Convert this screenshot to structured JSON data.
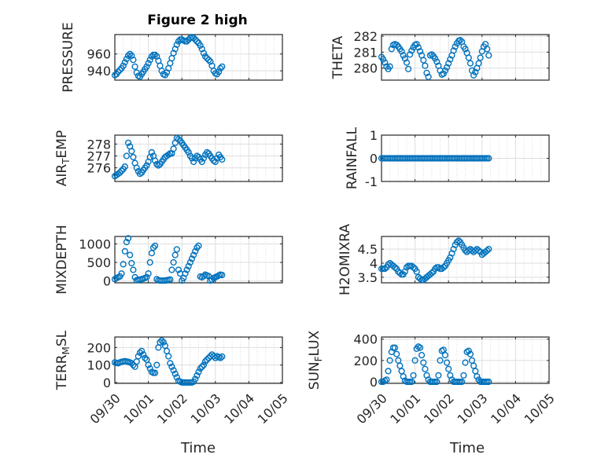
{
  "figure": {
    "title": "Figure 2 high",
    "xlabel": "Time",
    "date_ticks": [
      "09/30",
      "10/01",
      "10/02",
      "10/03",
      "10/04",
      "10/05"
    ],
    "marker_color": "#0072BD"
  },
  "chart_data": [
    {
      "type": "scatter",
      "name": "pressure",
      "ylabel": "PRESSURE",
      "ylabel_sub": "",
      "ylabel_after": "",
      "xlim": [
        0,
        5
      ],
      "ylim": [
        929,
        983
      ],
      "yticks": [
        940,
        960
      ],
      "x": [
        0.0,
        0.05,
        0.1,
        0.15,
        0.2,
        0.25,
        0.3,
        0.35,
        0.4,
        0.45,
        0.5,
        0.55,
        0.6,
        0.65,
        0.7,
        0.75,
        0.8,
        0.85,
        0.9,
        0.95,
        1.0,
        1.05,
        1.1,
        1.15,
        1.2,
        1.25,
        1.3,
        1.35,
        1.4,
        1.45,
        1.5,
        1.55,
        1.6,
        1.65,
        1.7,
        1.75,
        1.8,
        1.85,
        1.9,
        1.95,
        2.0,
        2.05,
        2.1,
        2.15,
        2.2,
        2.25,
        2.3,
        2.35,
        2.4,
        2.45,
        2.5,
        2.55,
        2.6,
        2.65,
        2.7,
        2.75,
        2.8,
        2.85,
        2.9,
        2.95,
        3.0,
        3.05,
        3.1,
        3.15,
        3.2
      ],
      "y": [
        935,
        936,
        939,
        941,
        943,
        946,
        950,
        954,
        958,
        960,
        958,
        953,
        945,
        938,
        934,
        933,
        936,
        939,
        942,
        945,
        949,
        953,
        957,
        959,
        959,
        957,
        952,
        946,
        940,
        936,
        935,
        938,
        943,
        949,
        955,
        961,
        966,
        971,
        975,
        977,
        977,
        976,
        975,
        975,
        977,
        979,
        980,
        979,
        977,
        975,
        973,
        970,
        966,
        961,
        957,
        955,
        953,
        951,
        946,
        940,
        937,
        936,
        939,
        943,
        945
      ]
    },
    {
      "type": "scatter",
      "name": "theta",
      "ylabel": "THETA",
      "ylabel_sub": "",
      "ylabel_after": "",
      "xlim": [
        0,
        5
      ],
      "ylim": [
        279.25,
        282.1
      ],
      "yticks": [
        280,
        281,
        282
      ],
      "x": [
        0.0,
        0.05,
        0.1,
        0.15,
        0.2,
        0.25,
        0.3,
        0.35,
        0.4,
        0.45,
        0.5,
        0.55,
        0.6,
        0.65,
        0.7,
        0.75,
        0.8,
        0.85,
        0.9,
        0.95,
        1.0,
        1.05,
        1.1,
        1.15,
        1.2,
        1.25,
        1.3,
        1.35,
        1.4,
        1.45,
        1.5,
        1.55,
        1.6,
        1.65,
        1.7,
        1.75,
        1.8,
        1.85,
        1.9,
        1.95,
        2.0,
        2.05,
        2.1,
        2.15,
        2.2,
        2.25,
        2.3,
        2.35,
        2.4,
        2.45,
        2.5,
        2.55,
        2.6,
        2.65,
        2.7,
        2.75,
        2.8,
        2.85,
        2.9,
        2.95,
        3.0,
        3.05,
        3.1,
        3.15,
        3.2
      ],
      "y": [
        280.7,
        280.55,
        280.35,
        280.1,
        279.95,
        280.1,
        281.2,
        281.45,
        281.5,
        281.45,
        281.35,
        281.2,
        281.05,
        280.8,
        280.6,
        280.35,
        279.95,
        280.85,
        281.1,
        281.3,
        281.45,
        281.5,
        281.3,
        281.05,
        280.8,
        280.5,
        280.15,
        279.7,
        279.45,
        280.8,
        280.85,
        280.75,
        280.6,
        280.4,
        280.15,
        279.85,
        279.6,
        279.65,
        279.85,
        280.05,
        280.3,
        280.55,
        280.8,
        281.1,
        281.35,
        281.55,
        281.7,
        281.75,
        281.65,
        281.35,
        281.2,
        280.95,
        280.65,
        280.3,
        279.85,
        279.55,
        279.75,
        280.0,
        280.3,
        280.65,
        281.05,
        281.35,
        281.5,
        281.2,
        280.8
      ]
    },
    {
      "type": "scatter",
      "name": "air-temp",
      "ylabel": "AIR",
      "ylabel_sub": "T",
      "ylabel_after": "EMP",
      "xlim": [
        0,
        5
      ],
      "ylim": [
        274.85,
        278.75
      ],
      "yticks": [
        276,
        277,
        278
      ],
      "x": [
        0.0,
        0.05,
        0.1,
        0.15,
        0.2,
        0.25,
        0.3,
        0.35,
        0.4,
        0.45,
        0.5,
        0.55,
        0.6,
        0.65,
        0.7,
        0.75,
        0.8,
        0.85,
        0.9,
        0.95,
        1.0,
        1.05,
        1.1,
        1.15,
        1.2,
        1.25,
        1.3,
        1.35,
        1.4,
        1.45,
        1.5,
        1.55,
        1.6,
        1.65,
        1.7,
        1.75,
        1.8,
        1.85,
        1.9,
        1.95,
        2.0,
        2.05,
        2.1,
        2.15,
        2.2,
        2.25,
        2.3,
        2.35,
        2.4,
        2.45,
        2.5,
        2.55,
        2.6,
        2.65,
        2.7,
        2.75,
        2.8,
        2.85,
        2.9,
        2.95,
        3.0,
        3.05,
        3.1,
        3.15,
        3.2
      ],
      "y": [
        275.3,
        275.4,
        275.5,
        275.6,
        275.75,
        275.9,
        276.1,
        277.0,
        278.1,
        277.8,
        277.4,
        276.9,
        276.4,
        276.0,
        275.7,
        275.5,
        275.6,
        275.8,
        276.0,
        276.2,
        276.5,
        276.9,
        277.3,
        277.0,
        276.6,
        276.3,
        276.2,
        276.3,
        276.5,
        276.7,
        276.9,
        277.0,
        277.1,
        277.2,
        277.2,
        277.6,
        278.1,
        278.5,
        278.4,
        278.3,
        278.1,
        277.9,
        277.7,
        277.5,
        277.3,
        277.0,
        276.8,
        276.5,
        276.8,
        277.0,
        276.9,
        276.7,
        276.5,
        276.8,
        277.1,
        277.3,
        277.2,
        277.0,
        276.8,
        276.6,
        276.5,
        276.8,
        277.1,
        276.9,
        276.7
      ]
    },
    {
      "type": "scatter",
      "name": "rainfall",
      "ylabel": "RAINFALL",
      "ylabel_sub": "",
      "ylabel_after": "",
      "xlim": [
        0,
        5
      ],
      "ylim": [
        -1,
        1
      ],
      "yticks": [
        -1,
        0,
        1
      ],
      "x": [
        0.0,
        0.05,
        0.1,
        0.15,
        0.2,
        0.25,
        0.3,
        0.35,
        0.4,
        0.45,
        0.5,
        0.55,
        0.6,
        0.65,
        0.7,
        0.75,
        0.8,
        0.85,
        0.9,
        0.95,
        1.0,
        1.05,
        1.1,
        1.15,
        1.2,
        1.25,
        1.3,
        1.35,
        1.4,
        1.45,
        1.5,
        1.55,
        1.6,
        1.65,
        1.7,
        1.75,
        1.8,
        1.85,
        1.9,
        1.95,
        2.0,
        2.05,
        2.1,
        2.15,
        2.2,
        2.25,
        2.3,
        2.35,
        2.4,
        2.45,
        2.5,
        2.55,
        2.6,
        2.65,
        2.7,
        2.75,
        2.8,
        2.85,
        2.9,
        2.95,
        3.0,
        3.05,
        3.1,
        3.15,
        3.2
      ],
      "y": [
        0,
        0,
        0,
        0,
        0,
        0,
        0,
        0,
        0,
        0,
        0,
        0,
        0,
        0,
        0,
        0,
        0,
        0,
        0,
        0,
        0,
        0,
        0,
        0,
        0,
        0,
        0,
        0,
        0,
        0,
        0,
        0,
        0,
        0,
        0,
        0,
        0,
        0,
        0,
        0,
        0,
        0,
        0,
        0,
        0,
        0,
        0,
        0,
        0,
        0,
        0,
        0,
        0,
        0,
        0,
        0,
        0,
        0,
        0,
        0,
        0,
        0,
        0,
        0,
        0
      ]
    },
    {
      "type": "scatter",
      "name": "mixdepth",
      "ylabel": "MIXDEPTH",
      "ylabel_sub": "",
      "ylabel_after": "",
      "xlim": [
        0,
        5
      ],
      "ylim": [
        -50,
        1200
      ],
      "yticks": [
        0,
        500,
        1000
      ],
      "x": [
        0.0,
        0.05,
        0.1,
        0.15,
        0.2,
        0.25,
        0.3,
        0.35,
        0.4,
        0.45,
        0.5,
        0.55,
        0.6,
        0.65,
        0.7,
        0.75,
        0.8,
        0.85,
        0.9,
        0.95,
        1.0,
        1.05,
        1.1,
        1.15,
        1.2,
        1.25,
        1.3,
        1.35,
        1.4,
        1.45,
        1.5,
        1.55,
        1.6,
        1.65,
        1.7,
        1.75,
        1.8,
        1.85,
        1.9,
        1.95,
        2.0,
        2.05,
        2.1,
        2.15,
        2.2,
        2.25,
        2.3,
        2.35,
        2.4,
        2.45,
        2.5,
        2.55,
        2.6,
        2.65,
        2.7,
        2.75,
        2.8,
        2.85,
        2.9,
        2.95,
        3.0,
        3.05,
        3.1,
        3.15,
        3.2
      ],
      "y": [
        50,
        80,
        100,
        120,
        200,
        450,
        800,
        1050,
        1150,
        700,
        480,
        300,
        100,
        20,
        30,
        40,
        50,
        60,
        80,
        100,
        200,
        500,
        750,
        900,
        950,
        50,
        20,
        10,
        10,
        10,
        10,
        20,
        30,
        40,
        300,
        500,
        700,
        850,
        300,
        200,
        10,
        80,
        200,
        300,
        400,
        500,
        600,
        700,
        800,
        900,
        950,
        120,
        100,
        130,
        170,
        150,
        130,
        10,
        40,
        80,
        100,
        120,
        150,
        170,
        160
      ]
    },
    {
      "type": "scatter",
      "name": "h2omixra",
      "ylabel": "H2OMIXRA",
      "ylabel_sub": "",
      "ylabel_after": "",
      "xlim": [
        0,
        5
      ],
      "ylim": [
        3.3,
        4.95
      ],
      "yticks": [
        3.5,
        4,
        4.5
      ],
      "x": [
        0.0,
        0.05,
        0.1,
        0.15,
        0.2,
        0.25,
        0.3,
        0.35,
        0.4,
        0.45,
        0.5,
        0.55,
        0.6,
        0.65,
        0.7,
        0.75,
        0.8,
        0.85,
        0.9,
        0.95,
        1.0,
        1.05,
        1.1,
        1.15,
        1.2,
        1.25,
        1.3,
        1.35,
        1.4,
        1.45,
        1.5,
        1.55,
        1.6,
        1.65,
        1.7,
        1.75,
        1.8,
        1.85,
        1.9,
        1.95,
        2.0,
        2.05,
        2.1,
        2.15,
        2.2,
        2.25,
        2.3,
        2.35,
        2.4,
        2.45,
        2.5,
        2.55,
        2.6,
        2.65,
        2.7,
        2.75,
        2.8,
        2.85,
        2.9,
        2.95,
        3.0,
        3.05,
        3.1,
        3.15,
        3.2
      ],
      "y": [
        3.8,
        3.8,
        3.8,
        3.85,
        3.95,
        4.0,
        3.95,
        3.9,
        3.85,
        3.8,
        3.7,
        3.65,
        3.6,
        3.6,
        3.7,
        3.85,
        3.9,
        3.9,
        3.9,
        3.85,
        3.8,
        3.7,
        3.5,
        3.45,
        3.4,
        3.4,
        3.45,
        3.5,
        3.55,
        3.6,
        3.65,
        3.7,
        3.8,
        3.85,
        3.85,
        3.8,
        3.8,
        3.85,
        3.9,
        4.0,
        4.1,
        4.2,
        4.35,
        4.5,
        4.65,
        4.75,
        4.8,
        4.75,
        4.65,
        4.55,
        4.45,
        4.4,
        4.45,
        4.5,
        4.45,
        4.4,
        4.45,
        4.5,
        4.45,
        4.4,
        4.3,
        4.35,
        4.4,
        4.45,
        4.5
      ]
    },
    {
      "type": "scatter",
      "name": "terrain-msl",
      "ylabel": "TERR",
      "ylabel_sub": "M",
      "ylabel_after": "SL",
      "xlim": [
        0,
        5
      ],
      "ylim": [
        -5,
        260
      ],
      "yticks": [
        0,
        100,
        200
      ],
      "x": [
        0.0,
        0.05,
        0.1,
        0.15,
        0.2,
        0.25,
        0.3,
        0.35,
        0.4,
        0.45,
        0.5,
        0.55,
        0.6,
        0.65,
        0.7,
        0.75,
        0.8,
        0.85,
        0.9,
        0.95,
        1.0,
        1.05,
        1.1,
        1.15,
        1.2,
        1.25,
        1.3,
        1.35,
        1.4,
        1.45,
        1.5,
        1.55,
        1.6,
        1.65,
        1.7,
        1.75,
        1.8,
        1.85,
        1.9,
        1.95,
        2.0,
        2.05,
        2.1,
        2.15,
        2.2,
        2.25,
        2.3,
        2.35,
        2.4,
        2.45,
        2.5,
        2.55,
        2.6,
        2.65,
        2.7,
        2.75,
        2.8,
        2.85,
        2.9,
        2.95,
        3.0,
        3.05,
        3.1,
        3.15,
        3.2
      ],
      "y": [
        115,
        112,
        110,
        115,
        118,
        120,
        122,
        120,
        118,
        115,
        110,
        100,
        90,
        120,
        150,
        170,
        180,
        160,
        140,
        130,
        100,
        80,
        60,
        55,
        55,
        100,
        200,
        230,
        240,
        230,
        210,
        180,
        150,
        110,
        90,
        70,
        50,
        30,
        10,
        5,
        0,
        0,
        0,
        0,
        0,
        0,
        0,
        5,
        20,
        40,
        60,
        80,
        90,
        100,
        120,
        130,
        140,
        150,
        160,
        150,
        140,
        150,
        145,
        140,
        148
      ]
    },
    {
      "type": "scatter",
      "name": "sun-flux",
      "ylabel": "SUN",
      "ylabel_sub": "F",
      "ylabel_after": "LUX",
      "xlim": [
        0,
        5
      ],
      "ylim": [
        -15,
        420
      ],
      "yticks": [
        0,
        200,
        400
      ],
      "x": [
        0.0,
        0.05,
        0.1,
        0.15,
        0.2,
        0.25,
        0.3,
        0.35,
        0.4,
        0.45,
        0.5,
        0.55,
        0.6,
        0.65,
        0.7,
        0.75,
        0.8,
        0.85,
        0.9,
        0.95,
        1.0,
        1.05,
        1.1,
        1.15,
        1.2,
        1.25,
        1.3,
        1.35,
        1.4,
        1.45,
        1.5,
        1.55,
        1.6,
        1.65,
        1.7,
        1.75,
        1.8,
        1.85,
        1.9,
        1.95,
        2.0,
        2.05,
        2.1,
        2.15,
        2.2,
        2.25,
        2.3,
        2.35,
        2.4,
        2.45,
        2.5,
        2.55,
        2.6,
        2.65,
        2.7,
        2.75,
        2.8,
        2.85,
        2.9,
        2.95,
        3.0,
        3.05,
        3.1,
        3.15,
        3.2
      ],
      "y": [
        0,
        0,
        10,
        20,
        100,
        200,
        280,
        320,
        320,
        260,
        200,
        150,
        100,
        50,
        10,
        0,
        0,
        0,
        0,
        60,
        200,
        310,
        330,
        320,
        250,
        180,
        120,
        60,
        20,
        0,
        0,
        0,
        0,
        0,
        60,
        200,
        290,
        300,
        250,
        180,
        120,
        60,
        20,
        0,
        0,
        0,
        0,
        0,
        0,
        60,
        180,
        280,
        290,
        260,
        200,
        150,
        100,
        50,
        20,
        0,
        0,
        0,
        0,
        0,
        0
      ]
    }
  ]
}
